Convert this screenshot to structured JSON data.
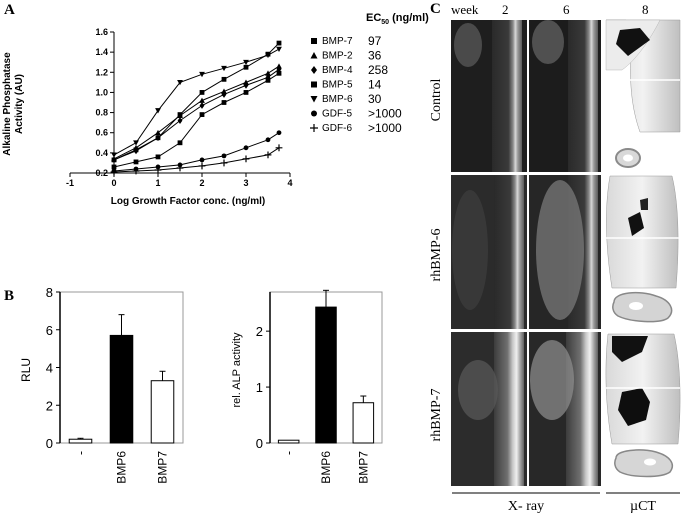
{
  "panel_a": {
    "letter": "A",
    "ylabel_line1": "Alkaline Phosphatase",
    "ylabel_line2": "Activity (AU)",
    "xlabel": "Log Growth Factor conc. (ng/ml)",
    "legend_header": "EC50 (ng/ml)",
    "legend_header_main": "EC",
    "legend_header_sub": "50",
    "legend_header_unit": " (ng/ml)",
    "legend": [
      {
        "name": "BMP-7",
        "ec50": "97",
        "marker": "square"
      },
      {
        "name": "BMP-2",
        "ec50": "36",
        "marker": "triangle-up"
      },
      {
        "name": "BMP-4",
        "ec50": "258",
        "marker": "diamond"
      },
      {
        "name": "BMP-5",
        "ec50": "14",
        "marker": "square"
      },
      {
        "name": "BMP-6",
        "ec50": "30",
        "marker": "triangle-down"
      },
      {
        "name": "GDF-5",
        "ec50": ">1000",
        "marker": "circle"
      },
      {
        "name": "GDF-6",
        "ec50": ">1000",
        "marker": "plus"
      }
    ]
  },
  "panel_b": {
    "letter": "B",
    "left_ylabel": "RLU",
    "right_ylabel": "rel. ALP activity"
  },
  "panel_c": {
    "letter": "C",
    "week_label": "week",
    "weeks": [
      "2",
      "6",
      "8"
    ],
    "rows": [
      "Control",
      "rhBMP-6",
      "rhBMP-7"
    ],
    "xray_label": "X- ray",
    "uct_label": "µCT"
  },
  "chart_data": [
    {
      "type": "line",
      "title": "",
      "xlabel": "Log Growth Factor conc. (ng/ml)",
      "ylabel": "Alkaline Phosphatase Activity (AU)",
      "xlim": [
        -1,
        4
      ],
      "ylim": [
        0.2,
        1.6
      ],
      "xticks": [
        "-1",
        "0",
        "1",
        "2",
        "3",
        "4"
      ],
      "yticks": [
        "0.2",
        "0.4",
        "0.6",
        "0.8",
        "1.0",
        "1.2",
        "1.4",
        "1.6"
      ],
      "legend_position": "right",
      "series": [
        {
          "name": "BMP-7",
          "marker": "square",
          "x": [
            0,
            0.5,
            1,
            1.5,
            2,
            2.5,
            3,
            3.5,
            3.75
          ],
          "y": [
            0.33,
            0.43,
            0.55,
            0.78,
            1.0,
            1.13,
            1.25,
            1.38,
            1.49
          ]
        },
        {
          "name": "BMP-2",
          "marker": "triangle-up",
          "x": [
            0,
            0.5,
            1,
            1.5,
            2,
            2.5,
            3,
            3.5,
            3.75
          ],
          "y": [
            0.34,
            0.45,
            0.6,
            0.77,
            0.92,
            1.01,
            1.1,
            1.19,
            1.26
          ]
        },
        {
          "name": "BMP-4",
          "marker": "diamond",
          "x": [
            0,
            0.5,
            1,
            1.5,
            2,
            2.5,
            3,
            3.5,
            3.75
          ],
          "y": [
            0.33,
            0.42,
            0.55,
            0.72,
            0.87,
            0.98,
            1.07,
            1.15,
            1.23
          ]
        },
        {
          "name": "BMP-5",
          "marker": "square",
          "x": [
            0,
            0.5,
            1,
            1.5,
            2,
            2.5,
            3,
            3.5,
            3.75
          ],
          "y": [
            0.26,
            0.31,
            0.36,
            0.5,
            0.78,
            0.9,
            1.0,
            1.12,
            1.19
          ]
        },
        {
          "name": "BMP-6",
          "marker": "triangle-down",
          "x": [
            0,
            0.5,
            1,
            1.5,
            2,
            2.5,
            3,
            3.5,
            3.75
          ],
          "y": [
            0.38,
            0.5,
            0.82,
            1.1,
            1.18,
            1.24,
            1.3,
            1.37,
            1.43
          ]
        },
        {
          "name": "GDF-5",
          "marker": "circle",
          "x": [
            0,
            0.5,
            1,
            1.5,
            2,
            2.5,
            3,
            3.5,
            3.75
          ],
          "y": [
            0.22,
            0.24,
            0.26,
            0.28,
            0.33,
            0.37,
            0.45,
            0.53,
            0.6
          ]
        },
        {
          "name": "GDF-6",
          "marker": "plus",
          "x": [
            0,
            0.5,
            1,
            1.5,
            2,
            2.5,
            3,
            3.5,
            3.75
          ],
          "y": [
            0.21,
            0.22,
            0.23,
            0.25,
            0.27,
            0.3,
            0.34,
            0.38,
            0.45
          ]
        }
      ]
    },
    {
      "type": "bar",
      "title": "",
      "xlabel": "",
      "ylabel": "RLU",
      "categories": [
        "-",
        "BMP6",
        "BMP7"
      ],
      "values": [
        0.2,
        5.7,
        3.3
      ],
      "errors": [
        0.05,
        1.1,
        0.5
      ],
      "fills": [
        "#ffffff",
        "#000000",
        "#ffffff"
      ],
      "ylim": [
        0,
        8
      ],
      "yticks": [
        "0",
        "2",
        "4",
        "6",
        "8"
      ]
    },
    {
      "type": "bar",
      "title": "",
      "xlabel": "",
      "ylabel": "rel. ALP activity",
      "categories": [
        "-",
        "BMP6",
        "BMP7"
      ],
      "values": [
        0.05,
        2.43,
        0.72
      ],
      "errors": [
        0.02,
        0.3,
        0.12
      ],
      "fills": [
        "#ffffff",
        "#000000",
        "#ffffff"
      ],
      "ylim": [
        0,
        2.7
      ],
      "yticks": [
        "0",
        "1",
        "2"
      ]
    }
  ]
}
